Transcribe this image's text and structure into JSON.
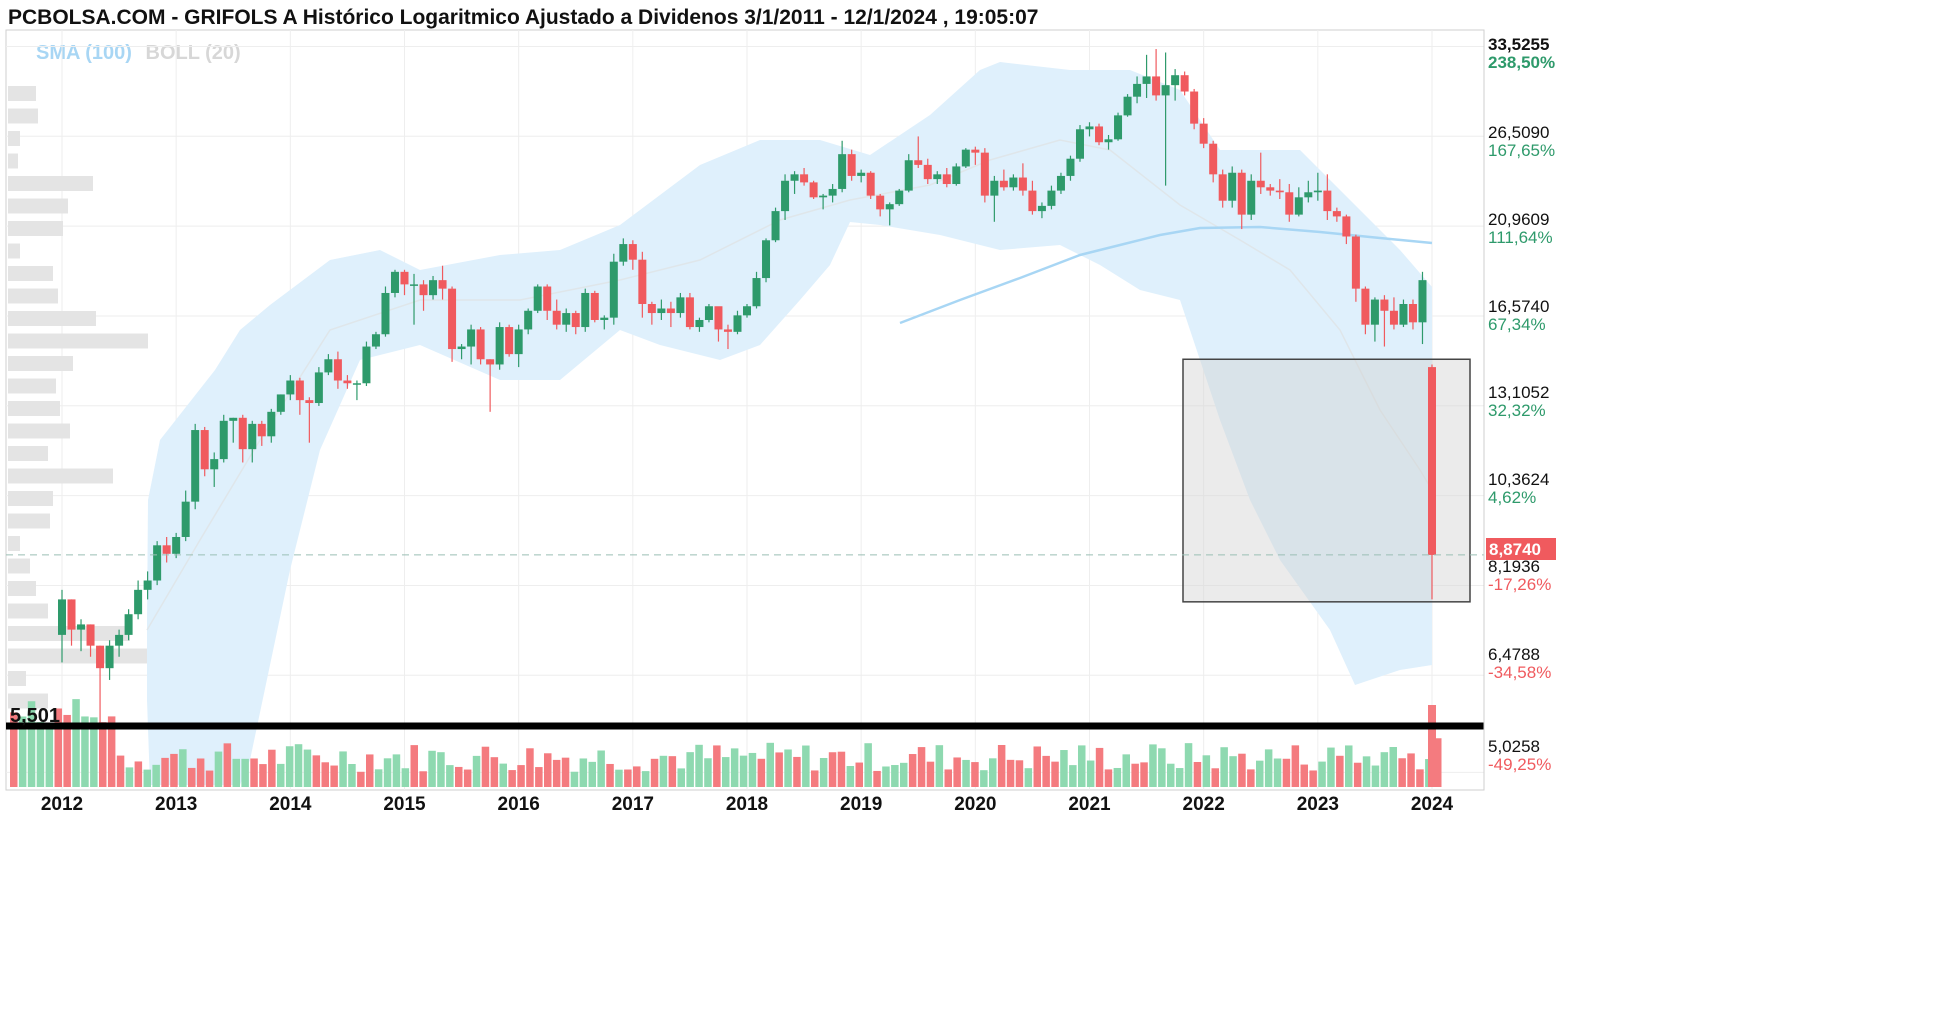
{
  "header": {
    "title": "PCBOLSA.COM - GRIFOLS A Histórico Logaritmico Ajustado a Dividenos 3/1/2011 - 12/1/2024 , 19:05:07"
  },
  "legend": {
    "sma_label": "SMA (100)",
    "boll_label": "BOLL (20)",
    "sma_color": "#a8d6f4",
    "boll_color": "#d7d7d7"
  },
  "colors": {
    "up": "#2e9a6b",
    "down": "#f05a5e",
    "band": "#dff0fc",
    "current_price_bg": "#f05a5e",
    "support_line": "#000000"
  },
  "chart_data": {
    "type": "candlestick",
    "scale": "log",
    "frequency": "monthly",
    "date_range": "3/1/2011 - 12/1/2024",
    "y_range": [
      4.8,
      35.0
    ],
    "x_ticks": [
      "2012",
      "2013",
      "2014",
      "2015",
      "2016",
      "2017",
      "2018",
      "2019",
      "2020",
      "2021",
      "2022",
      "2023",
      "2024"
    ],
    "y_ticks": [
      {
        "price": "33,5255",
        "pct": "238,50%",
        "value": 33.5255,
        "dir": "up"
      },
      {
        "price": "26,5090",
        "pct": "167,65%",
        "value": 26.509,
        "dir": "up"
      },
      {
        "price": "20,9609",
        "pct": "111,64%",
        "value": 20.9609,
        "dir": "up"
      },
      {
        "price": "16,5740",
        "pct": "67,34%",
        "value": 16.574,
        "dir": "up"
      },
      {
        "price": "13,1052",
        "pct": "32,32%",
        "value": 13.1052,
        "dir": "up"
      },
      {
        "price": "10,3624",
        "pct": "4,62%",
        "value": 10.3624,
        "dir": "up"
      },
      {
        "price": "8,1936",
        "pct": "-17,26%",
        "value": 8.1936,
        "dir": "down"
      },
      {
        "price": "6,4788",
        "pct": "-34,58%",
        "value": 6.4788,
        "dir": "down"
      },
      {
        "price": "5,0258",
        "pct": "-49,25%",
        "value": 5.0258,
        "dir": "down"
      }
    ],
    "current_price": {
      "label": "8,8740",
      "value": 8.874
    },
    "support_level": {
      "label": "5,501",
      "value": 5.501
    },
    "highlight_zone": {
      "x_from": "2022-06",
      "x_to": "2024-03",
      "y_from": 7.85,
      "y_to": 14.8
    },
    "candles": [
      {
        "d": "2012-01",
        "o": 7.2,
        "h": 8.1,
        "l": 6.7,
        "c": 7.9
      },
      {
        "d": "2012-02",
        "o": 7.9,
        "h": 7.9,
        "l": 7.0,
        "c": 7.3
      },
      {
        "d": "2012-03",
        "o": 7.3,
        "h": 7.5,
        "l": 6.9,
        "c": 7.4
      },
      {
        "d": "2012-04",
        "o": 7.4,
        "h": 7.4,
        "l": 6.8,
        "c": 7.0
      },
      {
        "d": "2012-05",
        "o": 7.0,
        "h": 7.0,
        "l": 5.4,
        "c": 6.6
      },
      {
        "d": "2012-06",
        "o": 6.6,
        "h": 7.1,
        "l": 6.4,
        "c": 7.0
      },
      {
        "d": "2012-07",
        "o": 7.0,
        "h": 7.3,
        "l": 6.8,
        "c": 7.2
      },
      {
        "d": "2012-08",
        "o": 7.2,
        "h": 7.7,
        "l": 7.1,
        "c": 7.6
      },
      {
        "d": "2012-09",
        "o": 7.6,
        "h": 8.3,
        "l": 7.5,
        "c": 8.1
      },
      {
        "d": "2012-10",
        "o": 8.1,
        "h": 8.5,
        "l": 7.9,
        "c": 8.3
      },
      {
        "d": "2012-11",
        "o": 8.3,
        "h": 9.2,
        "l": 8.2,
        "c": 9.1
      },
      {
        "d": "2012-12",
        "o": 9.1,
        "h": 9.3,
        "l": 8.7,
        "c": 8.9
      },
      {
        "d": "2013-01",
        "o": 8.9,
        "h": 9.4,
        "l": 8.8,
        "c": 9.3
      },
      {
        "d": "2013-02",
        "o": 9.3,
        "h": 10.5,
        "l": 9.2,
        "c": 10.2
      },
      {
        "d": "2013-03",
        "o": 10.2,
        "h": 12.5,
        "l": 10.0,
        "c": 12.3
      },
      {
        "d": "2013-04",
        "o": 12.3,
        "h": 12.4,
        "l": 10.9,
        "c": 11.1
      },
      {
        "d": "2013-05",
        "o": 11.1,
        "h": 11.6,
        "l": 10.6,
        "c": 11.4
      },
      {
        "d": "2013-06",
        "o": 11.4,
        "h": 12.8,
        "l": 11.3,
        "c": 12.6
      },
      {
        "d": "2013-07",
        "o": 12.6,
        "h": 12.7,
        "l": 11.9,
        "c": 12.7
      },
      {
        "d": "2013-08",
        "o": 12.7,
        "h": 12.8,
        "l": 11.3,
        "c": 11.7
      },
      {
        "d": "2013-09",
        "o": 11.7,
        "h": 12.6,
        "l": 11.3,
        "c": 12.5
      },
      {
        "d": "2013-10",
        "o": 12.5,
        "h": 12.6,
        "l": 11.8,
        "c": 12.1
      },
      {
        "d": "2013-11",
        "o": 12.1,
        "h": 13.0,
        "l": 11.9,
        "c": 12.9
      },
      {
        "d": "2013-12",
        "o": 12.9,
        "h": 13.5,
        "l": 12.8,
        "c": 13.5
      },
      {
        "d": "2014-01",
        "o": 13.5,
        "h": 14.2,
        "l": 13.3,
        "c": 14.0
      },
      {
        "d": "2014-02",
        "o": 14.0,
        "h": 14.1,
        "l": 12.8,
        "c": 13.3
      },
      {
        "d": "2014-03",
        "o": 13.3,
        "h": 13.4,
        "l": 11.9,
        "c": 13.2
      },
      {
        "d": "2014-04",
        "o": 13.2,
        "h": 14.5,
        "l": 13.1,
        "c": 14.3
      },
      {
        "d": "2014-05",
        "o": 14.3,
        "h": 15.0,
        "l": 14.2,
        "c": 14.8
      },
      {
        "d": "2014-06",
        "o": 14.8,
        "h": 15.1,
        "l": 13.7,
        "c": 14.0
      },
      {
        "d": "2014-07",
        "o": 14.0,
        "h": 14.2,
        "l": 13.7,
        "c": 13.9
      },
      {
        "d": "2014-08",
        "o": 13.9,
        "h": 14.0,
        "l": 13.3,
        "c": 13.9
      },
      {
        "d": "2014-09",
        "o": 13.9,
        "h": 15.5,
        "l": 13.8,
        "c": 15.3
      },
      {
        "d": "2014-10",
        "o": 15.3,
        "h": 15.9,
        "l": 15.2,
        "c": 15.8
      },
      {
        "d": "2014-11",
        "o": 15.8,
        "h": 17.9,
        "l": 15.7,
        "c": 17.6
      },
      {
        "d": "2014-12",
        "o": 17.6,
        "h": 18.7,
        "l": 17.4,
        "c": 18.6
      },
      {
        "d": "2015-01",
        "o": 18.6,
        "h": 18.7,
        "l": 17.5,
        "c": 18.0
      },
      {
        "d": "2015-02",
        "o": 18.0,
        "h": 18.5,
        "l": 16.2,
        "c": 18.0
      },
      {
        "d": "2015-03",
        "o": 18.0,
        "h": 18.2,
        "l": 16.8,
        "c": 17.5
      },
      {
        "d": "2015-04",
        "o": 17.5,
        "h": 18.4,
        "l": 17.3,
        "c": 18.2
      },
      {
        "d": "2015-05",
        "o": 18.2,
        "h": 18.9,
        "l": 17.3,
        "c": 17.8
      },
      {
        "d": "2015-06",
        "o": 17.8,
        "h": 17.9,
        "l": 14.7,
        "c": 15.2
      },
      {
        "d": "2015-07",
        "o": 15.2,
        "h": 15.4,
        "l": 14.8,
        "c": 15.3
      },
      {
        "d": "2015-08",
        "o": 15.3,
        "h": 16.2,
        "l": 14.6,
        "c": 16.0
      },
      {
        "d": "2015-09",
        "o": 16.0,
        "h": 16.1,
        "l": 14.6,
        "c": 14.8
      },
      {
        "d": "2015-10",
        "o": 14.8,
        "h": 14.8,
        "l": 12.9,
        "c": 14.6
      },
      {
        "d": "2015-11",
        "o": 14.6,
        "h": 16.3,
        "l": 14.4,
        "c": 16.1
      },
      {
        "d": "2015-12",
        "o": 16.1,
        "h": 16.2,
        "l": 14.9,
        "c": 15.0
      },
      {
        "d": "2016-01",
        "o": 15.0,
        "h": 16.2,
        "l": 14.5,
        "c": 16.0
      },
      {
        "d": "2016-02",
        "o": 16.0,
        "h": 16.9,
        "l": 15.8,
        "c": 16.8
      },
      {
        "d": "2016-03",
        "o": 16.8,
        "h": 18.0,
        "l": 16.7,
        "c": 17.9
      },
      {
        "d": "2016-04",
        "o": 17.9,
        "h": 18.0,
        "l": 16.4,
        "c": 16.8
      },
      {
        "d": "2016-05",
        "o": 16.8,
        "h": 17.3,
        "l": 16.0,
        "c": 16.2
      },
      {
        "d": "2016-06",
        "o": 16.2,
        "h": 16.9,
        "l": 15.9,
        "c": 16.7
      },
      {
        "d": "2016-07",
        "o": 16.7,
        "h": 16.8,
        "l": 15.8,
        "c": 16.1
      },
      {
        "d": "2016-08",
        "o": 16.1,
        "h": 17.8,
        "l": 15.9,
        "c": 17.6
      },
      {
        "d": "2016-09",
        "o": 17.6,
        "h": 17.7,
        "l": 16.3,
        "c": 16.4
      },
      {
        "d": "2016-10",
        "o": 16.4,
        "h": 16.6,
        "l": 16.0,
        "c": 16.5
      },
      {
        "d": "2016-11",
        "o": 16.5,
        "h": 19.5,
        "l": 16.2,
        "c": 19.1
      },
      {
        "d": "2016-12",
        "o": 19.1,
        "h": 20.3,
        "l": 18.9,
        "c": 20.0
      },
      {
        "d": "2017-01",
        "o": 20.0,
        "h": 20.2,
        "l": 18.7,
        "c": 19.2
      },
      {
        "d": "2017-02",
        "o": 19.2,
        "h": 19.6,
        "l": 16.5,
        "c": 17.1
      },
      {
        "d": "2017-03",
        "o": 17.1,
        "h": 17.2,
        "l": 16.2,
        "c": 16.7
      },
      {
        "d": "2017-04",
        "o": 16.7,
        "h": 17.3,
        "l": 16.4,
        "c": 16.9
      },
      {
        "d": "2017-05",
        "o": 16.9,
        "h": 17.2,
        "l": 16.1,
        "c": 16.7
      },
      {
        "d": "2017-06",
        "o": 16.7,
        "h": 17.6,
        "l": 16.5,
        "c": 17.4
      },
      {
        "d": "2017-07",
        "o": 17.4,
        "h": 17.6,
        "l": 16.0,
        "c": 16.1
      },
      {
        "d": "2017-08",
        "o": 16.1,
        "h": 16.5,
        "l": 15.9,
        "c": 16.4
      },
      {
        "d": "2017-09",
        "o": 16.4,
        "h": 17.1,
        "l": 16.3,
        "c": 17.0
      },
      {
        "d": "2017-10",
        "o": 17.0,
        "h": 16.8,
        "l": 15.5,
        "c": 16.0
      },
      {
        "d": "2017-11",
        "o": 16.0,
        "h": 16.2,
        "l": 15.2,
        "c": 15.9
      },
      {
        "d": "2017-12",
        "o": 15.9,
        "h": 16.8,
        "l": 15.8,
        "c": 16.6
      },
      {
        "d": "2018-01",
        "o": 16.6,
        "h": 17.1,
        "l": 16.5,
        "c": 17.0
      },
      {
        "d": "2018-02",
        "o": 17.0,
        "h": 18.6,
        "l": 16.9,
        "c": 18.3
      },
      {
        "d": "2018-03",
        "o": 18.3,
        "h": 20.3,
        "l": 18.1,
        "c": 20.2
      },
      {
        "d": "2018-04",
        "o": 20.2,
        "h": 22.0,
        "l": 20.1,
        "c": 21.8
      },
      {
        "d": "2018-05",
        "o": 21.8,
        "h": 24.0,
        "l": 21.3,
        "c": 23.6
      },
      {
        "d": "2018-06",
        "o": 23.6,
        "h": 24.2,
        "l": 22.8,
        "c": 24.0
      },
      {
        "d": "2018-07",
        "o": 24.0,
        "h": 24.4,
        "l": 23.3,
        "c": 23.5
      },
      {
        "d": "2018-08",
        "o": 23.5,
        "h": 23.6,
        "l": 22.5,
        "c": 22.6
      },
      {
        "d": "2018-09",
        "o": 22.6,
        "h": 22.8,
        "l": 21.9,
        "c": 22.7
      },
      {
        "d": "2018-10",
        "o": 22.7,
        "h": 23.4,
        "l": 22.3,
        "c": 23.1
      },
      {
        "d": "2018-11",
        "o": 23.1,
        "h": 26.2,
        "l": 22.9,
        "c": 25.3
      },
      {
        "d": "2018-12",
        "o": 25.3,
        "h": 25.6,
        "l": 23.6,
        "c": 23.9
      },
      {
        "d": "2019-01",
        "o": 23.9,
        "h": 24.3,
        "l": 23.5,
        "c": 24.1
      },
      {
        "d": "2019-02",
        "o": 24.1,
        "h": 24.2,
        "l": 22.5,
        "c": 22.7
      },
      {
        "d": "2019-03",
        "o": 22.7,
        "h": 22.8,
        "l": 21.5,
        "c": 21.9
      },
      {
        "d": "2019-04",
        "o": 21.9,
        "h": 22.3,
        "l": 21.0,
        "c": 22.2
      },
      {
        "d": "2019-05",
        "o": 22.2,
        "h": 23.1,
        "l": 22.1,
        "c": 23.0
      },
      {
        "d": "2019-06",
        "o": 23.0,
        "h": 25.3,
        "l": 22.9,
        "c": 24.9
      },
      {
        "d": "2019-07",
        "o": 24.9,
        "h": 26.5,
        "l": 24.4,
        "c": 24.6
      },
      {
        "d": "2019-08",
        "o": 24.6,
        "h": 25.0,
        "l": 23.4,
        "c": 23.7
      },
      {
        "d": "2019-09",
        "o": 23.7,
        "h": 24.2,
        "l": 23.4,
        "c": 24.0
      },
      {
        "d": "2019-10",
        "o": 24.0,
        "h": 24.4,
        "l": 23.2,
        "c": 23.4
      },
      {
        "d": "2019-11",
        "o": 23.4,
        "h": 24.7,
        "l": 23.3,
        "c": 24.5
      },
      {
        "d": "2019-12",
        "o": 24.5,
        "h": 25.7,
        "l": 24.4,
        "c": 25.6
      },
      {
        "d": "2020-01",
        "o": 25.6,
        "h": 25.8,
        "l": 24.6,
        "c": 25.4
      },
      {
        "d": "2020-02",
        "o": 25.4,
        "h": 25.7,
        "l": 22.3,
        "c": 22.7
      },
      {
        "d": "2020-03",
        "o": 22.7,
        "h": 23.9,
        "l": 21.2,
        "c": 23.6
      },
      {
        "d": "2020-04",
        "o": 23.6,
        "h": 24.3,
        "l": 23.0,
        "c": 23.2
      },
      {
        "d": "2020-05",
        "o": 23.2,
        "h": 24.0,
        "l": 23.0,
        "c": 23.8
      },
      {
        "d": "2020-06",
        "o": 23.8,
        "h": 24.7,
        "l": 22.7,
        "c": 23.0
      },
      {
        "d": "2020-07",
        "o": 23.0,
        "h": 23.6,
        "l": 21.6,
        "c": 21.8
      },
      {
        "d": "2020-08",
        "o": 21.8,
        "h": 22.3,
        "l": 21.4,
        "c": 22.1
      },
      {
        "d": "2020-09",
        "o": 22.1,
        "h": 23.3,
        "l": 21.9,
        "c": 23.0
      },
      {
        "d": "2020-10",
        "o": 23.0,
        "h": 24.1,
        "l": 22.8,
        "c": 23.9
      },
      {
        "d": "2020-11",
        "o": 23.9,
        "h": 25.2,
        "l": 23.6,
        "c": 25.0
      },
      {
        "d": "2020-12",
        "o": 25.0,
        "h": 27.3,
        "l": 24.8,
        "c": 27.0
      },
      {
        "d": "2021-01",
        "o": 27.0,
        "h": 27.5,
        "l": 26.5,
        "c": 27.2
      },
      {
        "d": "2021-02",
        "o": 27.2,
        "h": 27.4,
        "l": 25.9,
        "c": 26.1
      },
      {
        "d": "2021-03",
        "o": 26.1,
        "h": 26.6,
        "l": 25.6,
        "c": 26.3
      },
      {
        "d": "2021-04",
        "o": 26.3,
        "h": 28.2,
        "l": 26.2,
        "c": 28.0
      },
      {
        "d": "2021-05",
        "o": 28.0,
        "h": 29.6,
        "l": 27.9,
        "c": 29.4
      },
      {
        "d": "2021-06",
        "o": 29.4,
        "h": 31.0,
        "l": 28.9,
        "c": 30.4
      },
      {
        "d": "2021-07",
        "o": 30.4,
        "h": 32.8,
        "l": 29.3,
        "c": 31.0
      },
      {
        "d": "2021-08",
        "o": 31.0,
        "h": 33.3,
        "l": 29.1,
        "c": 29.5
      },
      {
        "d": "2021-09",
        "o": 29.5,
        "h": 33.0,
        "l": 23.3,
        "c": 30.3
      },
      {
        "d": "2021-10",
        "o": 30.3,
        "h": 31.6,
        "l": 29.1,
        "c": 31.1
      },
      {
        "d": "2021-11",
        "o": 31.1,
        "h": 31.4,
        "l": 29.5,
        "c": 29.8
      },
      {
        "d": "2021-12",
        "o": 29.8,
        "h": 30.0,
        "l": 27.0,
        "c": 27.4
      },
      {
        "d": "2022-01",
        "o": 27.4,
        "h": 27.8,
        "l": 25.7,
        "c": 26.0
      },
      {
        "d": "2022-02",
        "o": 26.0,
        "h": 26.2,
        "l": 23.5,
        "c": 24.0
      },
      {
        "d": "2022-03",
        "o": 24.0,
        "h": 24.3,
        "l": 22.0,
        "c": 22.4
      },
      {
        "d": "2022-04",
        "o": 22.4,
        "h": 24.5,
        "l": 22.0,
        "c": 24.1
      },
      {
        "d": "2022-05",
        "o": 24.1,
        "h": 24.3,
        "l": 20.8,
        "c": 21.6
      },
      {
        "d": "2022-06",
        "o": 21.6,
        "h": 24.0,
        "l": 21.3,
        "c": 23.6
      },
      {
        "d": "2022-07",
        "o": 23.6,
        "h": 25.4,
        "l": 22.8,
        "c": 23.2
      },
      {
        "d": "2022-08",
        "o": 23.2,
        "h": 23.4,
        "l": 22.7,
        "c": 23.0
      },
      {
        "d": "2022-09",
        "o": 23.0,
        "h": 23.7,
        "l": 22.5,
        "c": 22.9
      },
      {
        "d": "2022-10",
        "o": 22.9,
        "h": 23.4,
        "l": 21.2,
        "c": 21.6
      },
      {
        "d": "2022-11",
        "o": 21.6,
        "h": 23.2,
        "l": 21.5,
        "c": 22.6
      },
      {
        "d": "2022-12",
        "o": 22.6,
        "h": 23.6,
        "l": 22.3,
        "c": 22.9
      },
      {
        "d": "2023-01",
        "o": 22.9,
        "h": 24.1,
        "l": 22.4,
        "c": 23.0
      },
      {
        "d": "2023-02",
        "o": 23.0,
        "h": 24.0,
        "l": 21.3,
        "c": 21.8
      },
      {
        "d": "2023-03",
        "o": 21.8,
        "h": 22.0,
        "l": 21.2,
        "c": 21.5
      },
      {
        "d": "2023-04",
        "o": 21.5,
        "h": 21.6,
        "l": 20.0,
        "c": 20.4
      },
      {
        "d": "2023-05",
        "o": 20.4,
        "h": 20.5,
        "l": 17.2,
        "c": 17.8
      },
      {
        "d": "2023-06",
        "o": 17.8,
        "h": 17.9,
        "l": 15.8,
        "c": 16.2
      },
      {
        "d": "2023-07",
        "o": 16.2,
        "h": 17.4,
        "l": 15.5,
        "c": 17.3
      },
      {
        "d": "2023-08",
        "o": 17.3,
        "h": 17.5,
        "l": 15.3,
        "c": 16.8
      },
      {
        "d": "2023-09",
        "o": 16.8,
        "h": 17.4,
        "l": 16.0,
        "c": 16.2
      },
      {
        "d": "2023-10",
        "o": 16.2,
        "h": 17.3,
        "l": 16.1,
        "c": 17.1
      },
      {
        "d": "2023-11",
        "o": 17.1,
        "h": 17.3,
        "l": 16.0,
        "c": 16.3
      },
      {
        "d": "2023-12",
        "o": 16.3,
        "h": 18.6,
        "l": 15.4,
        "c": 18.2
      }
    ]
  }
}
